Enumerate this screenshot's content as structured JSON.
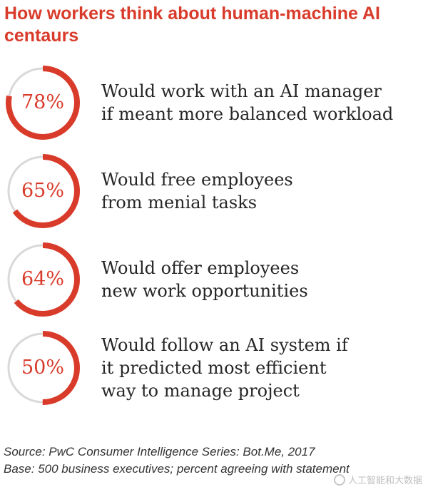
{
  "header": {
    "title": "How workers think about human-machine AI centaurs"
  },
  "chart_data": {
    "type": "donut",
    "title": "How workers think about human-machine AI centaurs",
    "track_color": "#d9d9d9",
    "value_color": "#d93b2b",
    "items": [
      {
        "value": 78,
        "label": "78%",
        "statement_lines": [
          "Would work with an AI manager",
          "if meant more balanced workload"
        ]
      },
      {
        "value": 65,
        "label": "65%",
        "statement_lines": [
          "Would free employees",
          "from menial tasks"
        ]
      },
      {
        "value": 64,
        "label": "64%",
        "statement_lines": [
          "Would offer employees",
          "new work opportunities"
        ]
      },
      {
        "value": 50,
        "label": "50%",
        "statement_lines": [
          "Would follow an AI system if",
          "it predicted most efficient",
          "way to manage project"
        ]
      }
    ]
  },
  "footer": {
    "source": "Source: PwC Consumer Intelligence Series: Bot.Me, 2017",
    "base": "Base: 500 business executives; percent agreeing with statement"
  },
  "watermark": {
    "icon": "wechat-logo-icon",
    "text": "人工智能和大数据"
  }
}
